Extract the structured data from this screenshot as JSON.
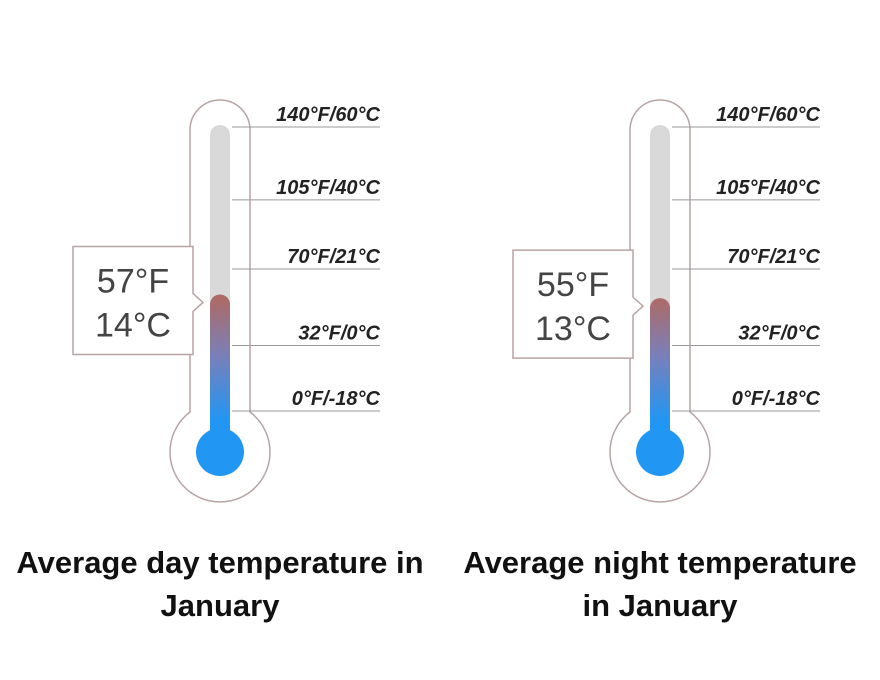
{
  "chart_data": [
    {
      "type": "thermometer",
      "title": "Average day temperature in January",
      "values": [
        14
      ],
      "value_labels": [
        "14°C"
      ],
      "annotation": "57°F",
      "ylim": [
        -18,
        60
      ],
      "yticks": [
        {
          "value": 60,
          "label": "140°F/60°C"
        },
        {
          "value": 40,
          "label": "105°F/40°C"
        },
        {
          "value": 21,
          "label": "70°F/21°C"
        },
        {
          "value": 0,
          "label": "32°F/0°C"
        },
        {
          "value": -18,
          "label": "0°F/-18°C"
        }
      ],
      "color": "#2196f3"
    },
    {
      "type": "thermometer",
      "title": "Average night temperature in January",
      "values": [
        13
      ],
      "value_labels": [
        "13°C"
      ],
      "annotation": "55°F",
      "ylim": [
        -18,
        60
      ],
      "yticks": [
        {
          "value": 60,
          "label": "140°F/60°C"
        },
        {
          "value": 40,
          "label": "105°F/40°C"
        },
        {
          "value": 21,
          "label": "70°F/21°C"
        },
        {
          "value": 0,
          "label": "32°F/0°C"
        },
        {
          "value": -18,
          "label": "0°F/-18°C"
        }
      ],
      "color": "#2196f3"
    }
  ]
}
